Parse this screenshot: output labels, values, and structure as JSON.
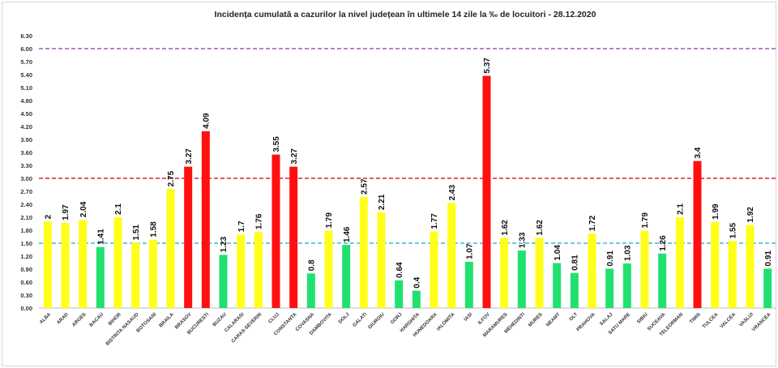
{
  "chart_data": {
    "type": "bar",
    "title": "Incidența cumulată a cazurilor la nivel județean în ultimele 14 zile la ‰ de locuitori - 28.12.2020",
    "categories": [
      "ALBA",
      "ARAD",
      "ARGES",
      "BACAU",
      "BIHOR",
      "BISTRITA NASAUD",
      "BOTOSANI",
      "BRAILA",
      "BRASOV",
      "BUCURESTI",
      "BUZAU",
      "CALARASI",
      "CARAS-SEVERIN",
      "CLUJ",
      "CONSTANTA",
      "COVASNA",
      "DAMBOVITA",
      "DOLJ",
      "GALATI",
      "GIURGIU",
      "GORJ",
      "HARGHITA",
      "HUNEDOARA",
      "IALOMITA",
      "IASI",
      "ILFOV",
      "MARAMURES",
      "MEHEDINTI",
      "MURES",
      "NEAMT",
      "OLT",
      "PRAHOVA",
      "SALAJ",
      "SATU MARE",
      "SIBIU",
      "SUCEAVA",
      "TELEORMAN",
      "TIMIS",
      "TULCEA",
      "VALCEA",
      "VASLUI",
      "VRANCEA"
    ],
    "values": [
      2,
      1.97,
      2.04,
      1.41,
      2.1,
      1.51,
      1.58,
      2.75,
      3.27,
      4.09,
      1.23,
      1.7,
      1.76,
      3.55,
      3.27,
      0.8,
      1.79,
      1.46,
      2.57,
      2.21,
      0.64,
      0.4,
      1.77,
      2.43,
      1.07,
      5.37,
      1.62,
      1.33,
      1.62,
      1.04,
      0.81,
      1.72,
      0.91,
      1.03,
      1.79,
      1.26,
      2.1,
      3.4,
      1.99,
      1.55,
      1.92,
      0.91
    ],
    "data_labels": [
      "2",
      "1.97",
      "2.04",
      "1.41",
      "2.1",
      "1.51",
      "1.58",
      "2.75",
      "3.27",
      "4.09",
      "1.23",
      "1.7",
      "1.76",
      "3.55",
      "3.27",
      "0.8",
      "1.79",
      "1.46",
      "2.57",
      "2.21",
      "0.64",
      "0.4",
      "1.77",
      "2.43",
      "1.07",
      "5.37",
      "1.62",
      "1.33",
      "1.62",
      "1.04",
      "0.81",
      "1.72",
      "0.91",
      "1.03",
      "1.79",
      "1.26",
      "2.1",
      "3.4",
      "1.99",
      "1.55",
      "1.92",
      "0.91"
    ],
    "ylim": [
      0,
      6.3
    ],
    "yticks": [
      "0.00",
      "0.30",
      "0.60",
      "0.90",
      "1.20",
      "1.50",
      "1.80",
      "2.10",
      "2.40",
      "2.70",
      "3.00",
      "3.30",
      "3.60",
      "3.90",
      "4.20",
      "4.50",
      "4.80",
      "5.10",
      "5.40",
      "5.70",
      "6.00",
      "6.30"
    ],
    "reference_lines": [
      {
        "value": 6.0,
        "color": "#9b59b6"
      },
      {
        "value": 3.0,
        "color": "#d62728"
      },
      {
        "value": 1.5,
        "color": "#3fb8d8"
      }
    ],
    "color_thresholds": {
      "green_below": 1.5,
      "red_above": 3.0
    },
    "colors": {
      "green": "#22e070",
      "yellow": "#ffff1a",
      "red": "#ff1010"
    },
    "grid": false,
    "legend": "none"
  }
}
